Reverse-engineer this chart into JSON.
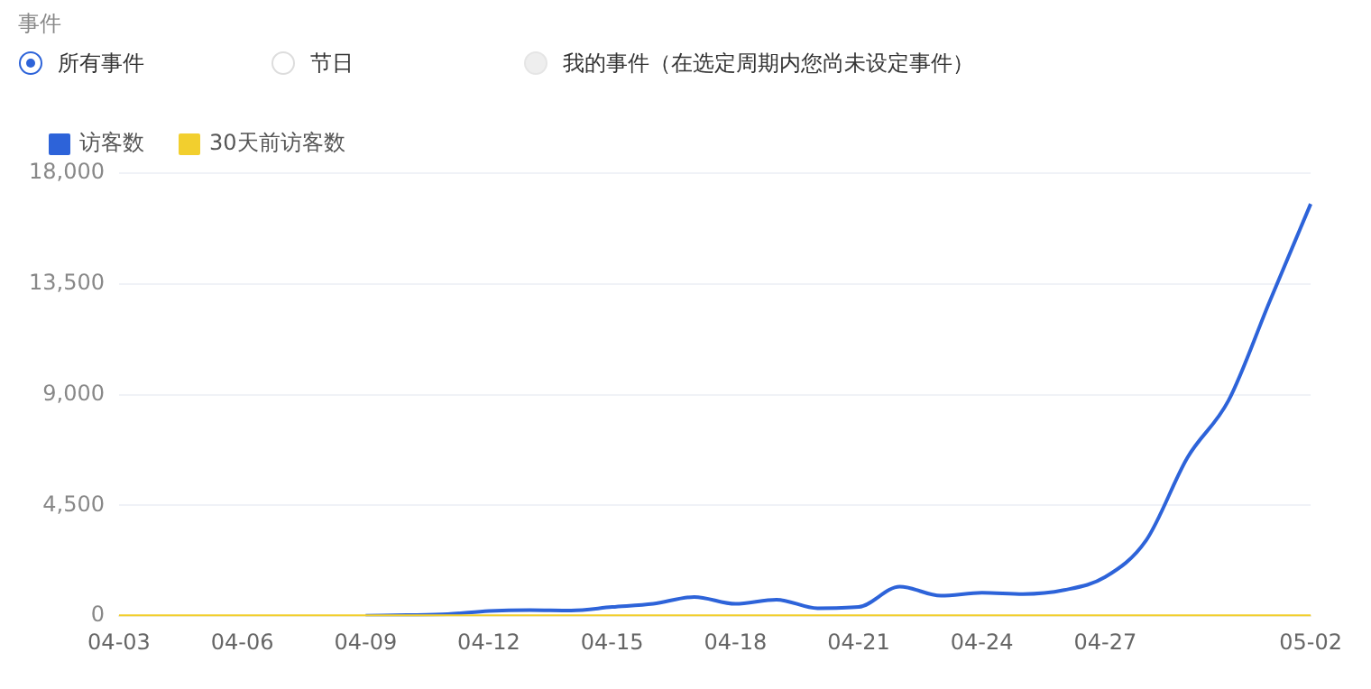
{
  "chart_data": {
    "type": "line",
    "annotations": [
      "事件",
      "所有事件",
      "节日",
      "我的事件（在选定周期内您尚未设定事件）"
    ],
    "categories": [
      "04-03",
      null,
      null,
      "04-06",
      null,
      null,
      "04-09",
      null,
      null,
      "04-12",
      null,
      null,
      "04-15",
      null,
      null,
      "04-18",
      null,
      null,
      "04-21",
      null,
      null,
      "04-24",
      null,
      null,
      "04-27",
      null,
      null,
      null,
      null,
      "05-02"
    ],
    "series": [
      {
        "name": "访客数",
        "color": "#2d63d9",
        "values": [
          null,
          null,
          null,
          null,
          null,
          null,
          20,
          40,
          80,
          210,
          250,
          230,
          370,
          500,
          780,
          500,
          670,
          320,
          370,
          1200,
          830,
          950,
          900,
          1060,
          1590,
          3090,
          6440,
          8760,
          12780,
          16750
        ]
      },
      {
        "name": "30天前访客数",
        "color": "#f2cf2e",
        "values": [
          0,
          0,
          0,
          0,
          0,
          0,
          0,
          0,
          0,
          0,
          0,
          0,
          0,
          0,
          0,
          0,
          0,
          0,
          0,
          0,
          0,
          0,
          0,
          0,
          0,
          0,
          0,
          0,
          0,
          0
        ]
      }
    ],
    "ylim": [
      0,
      18000
    ],
    "yticks": [
      0,
      {
        "value": 4500,
        "label": "4,500"
      },
      {
        "value": 9000,
        "label": "9,000"
      },
      {
        "value": 13500,
        "label": "13,500"
      },
      {
        "value": 18000,
        "label": "18,000"
      }
    ],
    "grid": "y",
    "legend": "top left",
    "marker": "none",
    "line_style": "solid"
  }
}
